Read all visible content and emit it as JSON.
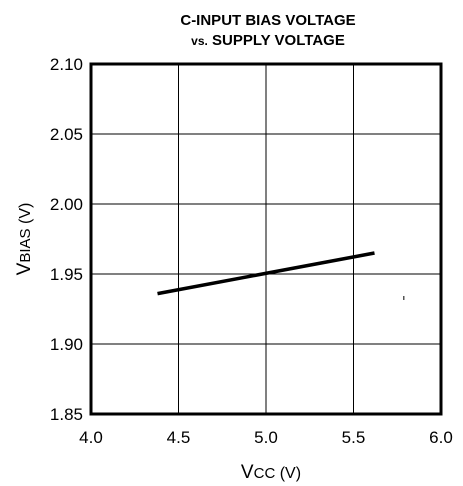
{
  "chart_data": {
    "type": "line",
    "title_line1": "C-INPUT BIAS VOLTAGE",
    "title_line2_prefix": "vs.",
    "title_line2_rest": " SUPPLY VOLTAGE",
    "xlabel_main": "V",
    "xlabel_sub": "CC",
    "xlabel_unit": " (V)",
    "ylabel_main": "V",
    "ylabel_sub": "BIAS",
    "ylabel_unit": " (V)",
    "xlim": [
      4.0,
      6.0
    ],
    "ylim": [
      1.85,
      2.1
    ],
    "xticks": [
      "4.0",
      "4.5",
      "5.0",
      "5.5",
      "6.0"
    ],
    "yticks": [
      "2.10",
      "2.05",
      "2.00",
      "1.95",
      "1.90",
      "1.85"
    ],
    "grid": true,
    "series": [
      {
        "x": [
          4.38,
          5.62
        ],
        "y": [
          1.936,
          1.965
        ]
      }
    ]
  }
}
